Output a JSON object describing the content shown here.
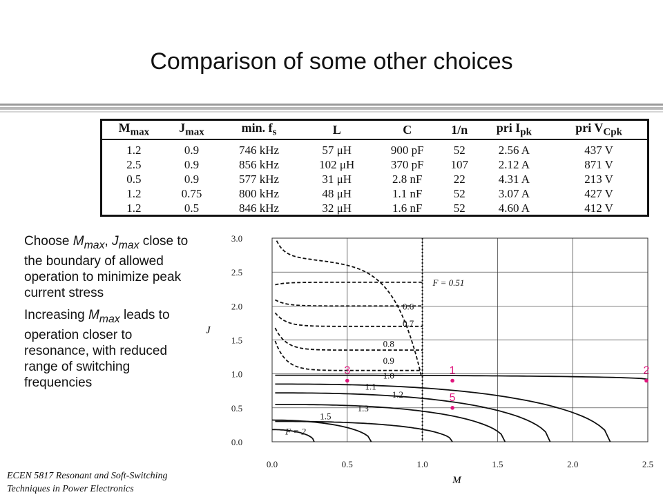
{
  "title": "Comparison of some other choices",
  "table": {
    "headers": [
      {
        "main": "M",
        "sub": "max"
      },
      {
        "main": "J",
        "sub": "max"
      },
      {
        "main": "min. f",
        "sub": "s"
      },
      {
        "main": "L",
        "sub": ""
      },
      {
        "main": "C",
        "sub": ""
      },
      {
        "main": "1/n",
        "sub": ""
      },
      {
        "main": "pri I",
        "sub": "pk"
      },
      {
        "main": "pri V",
        "sub": "Cpk"
      }
    ],
    "rows": [
      [
        "1.2",
        "0.9",
        "746 kHz",
        "57 μH",
        "900 pF",
        "52",
        "2.56 A",
        "437 V"
      ],
      [
        "2.5",
        "0.9",
        "856 kHz",
        "102 μH",
        "370 pF",
        "107",
        "2.12 A",
        "871 V"
      ],
      [
        "0.5",
        "0.9",
        "577 kHz",
        "31 μH",
        "2.8 nF",
        "22",
        "4.31 A",
        "213 V"
      ],
      [
        "1.2",
        "0.75",
        "800 kHz",
        "48 μH",
        "1.1 nF",
        "52",
        "3.07 A",
        "427 V"
      ],
      [
        "1.2",
        "0.5",
        "846 kHz",
        "32 μH",
        "1.6 nF",
        "52",
        "4.60 A",
        "412 V"
      ]
    ]
  },
  "bullets": {
    "b1_pre": "Choose ",
    "b1_m": "M",
    "b1_m_sub": "max",
    "b1_sep": ", ",
    "b1_j": "J",
    "b1_j_sub": "max",
    "b1_post": " close to the boundary of allowed operation to minimize peak current stress",
    "b2_pre": "Increasing ",
    "b2_m": "M",
    "b2_m_sub": "max",
    "b2_post": " leads to operation closer to resonance, with reduced range of switching frequencies"
  },
  "footer": {
    "line1": "ECEN 5817  Resonant and Soft-Switching",
    "line2": "Techniques in Power Electronics"
  },
  "chart_data": {
    "type": "line",
    "xlabel": "M",
    "ylabel": "J",
    "xlim": [
      0,
      2.5
    ],
    "ylim": [
      0,
      3
    ],
    "xticks": [
      "0.0",
      "0.5",
      "1.0",
      "1.5",
      "2.0",
      "2.5"
    ],
    "yticks": [
      "0.0",
      "0.5",
      "1.0",
      "1.5",
      "2.0",
      "2.5",
      "3.0"
    ],
    "grid": true,
    "curve_labels": [
      "F = 0.51",
      "0.6",
      "0.7",
      "0.8",
      "0.9",
      "1.0",
      "1.1",
      "1.2",
      "1.3",
      "1.5",
      "F = 2"
    ],
    "points": [
      {
        "label": "1",
        "x": 1.2,
        "y": 0.9
      },
      {
        "label": "2",
        "x": 2.5,
        "y": 0.9
      },
      {
        "label": "3",
        "x": 0.5,
        "y": 0.9
      },
      {
        "label": "5",
        "x": 1.2,
        "y": 0.5
      }
    ],
    "point_color": "#e0147c"
  }
}
